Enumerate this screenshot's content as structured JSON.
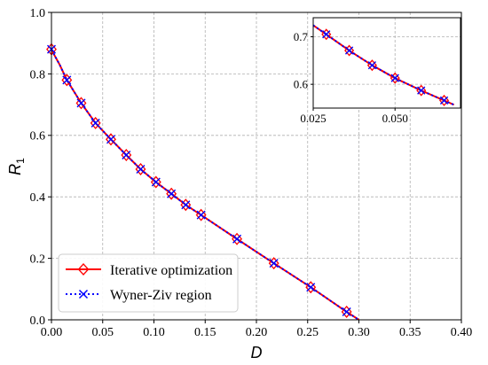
{
  "chart_data": [
    {
      "type": "line",
      "xlabel": "D",
      "ylabel_main": "R",
      "ylabel_sub": "1",
      "xlim": [
        0,
        0.4
      ],
      "ylim": [
        0,
        1.0
      ],
      "xticks": [
        "0.00",
        "0.05",
        "0.10",
        "0.15",
        "0.20",
        "0.25",
        "0.30",
        "0.35",
        "0.40"
      ],
      "yticks": [
        "0.0",
        "0.2",
        "0.4",
        "0.6",
        "0.8",
        "1.0"
      ],
      "grid": true,
      "legend_position": "lower-left",
      "series": [
        {
          "name": "Iterative optimization",
          "color": "#ff0000",
          "line_style": "solid",
          "marker": "diamond",
          "x": [
            0.0,
            0.003,
            0.008,
            0.015,
            0.029,
            0.043,
            0.058,
            0.073,
            0.087,
            0.102,
            0.117,
            0.131,
            0.146,
            0.181,
            0.217,
            0.253,
            0.288,
            0.3
          ],
          "y": [
            0.88,
            0.86,
            0.83,
            0.78,
            0.705,
            0.64,
            0.587,
            0.536,
            0.49,
            0.448,
            0.41,
            0.374,
            0.341,
            0.263,
            0.184,
            0.106,
            0.026,
            0.0
          ],
          "marker_x": [
            0.0,
            0.015,
            0.029,
            0.043,
            0.058,
            0.073,
            0.087,
            0.102,
            0.117,
            0.131,
            0.146,
            0.181,
            0.217,
            0.253,
            0.288
          ],
          "marker_y": [
            0.88,
            0.78,
            0.705,
            0.64,
            0.587,
            0.536,
            0.49,
            0.448,
            0.41,
            0.374,
            0.341,
            0.263,
            0.184,
            0.106,
            0.026
          ]
        },
        {
          "name": "Wyner-Ziv region",
          "color": "#0000ff",
          "line_style": "dotted",
          "marker": "x",
          "x": [
            0.0,
            0.003,
            0.008,
            0.015,
            0.029,
            0.043,
            0.058,
            0.073,
            0.087,
            0.102,
            0.117,
            0.131,
            0.146,
            0.181,
            0.217,
            0.253,
            0.288,
            0.3
          ],
          "y": [
            0.88,
            0.86,
            0.83,
            0.78,
            0.705,
            0.64,
            0.587,
            0.536,
            0.49,
            0.448,
            0.41,
            0.374,
            0.341,
            0.263,
            0.184,
            0.106,
            0.026,
            0.0
          ],
          "marker_x": [
            0.0,
            0.015,
            0.029,
            0.043,
            0.058,
            0.073,
            0.087,
            0.102,
            0.117,
            0.131,
            0.146,
            0.181,
            0.217,
            0.253,
            0.288
          ],
          "marker_y": [
            0.88,
            0.78,
            0.705,
            0.64,
            0.587,
            0.536,
            0.49,
            0.448,
            0.41,
            0.374,
            0.341,
            0.263,
            0.184,
            0.106,
            0.026
          ]
        }
      ]
    },
    {
      "type": "line",
      "role": "inset",
      "xlim": [
        0.025,
        0.07
      ],
      "ylim": [
        0.55,
        0.74
      ],
      "xticks": [
        "0.025",
        "0.050"
      ],
      "xtick_values": [
        0.025,
        0.05
      ],
      "yticks": [
        "0.6",
        "0.7"
      ],
      "ytick_values": [
        0.6,
        0.7
      ],
      "grid": true,
      "series": [
        {
          "name": "Iterative optimization",
          "color": "#ff0000",
          "line_style": "solid",
          "marker": "diamond",
          "x": [
            0.025,
            0.029,
            0.036,
            0.043,
            0.05,
            0.058,
            0.065,
            0.068
          ],
          "y": [
            0.724,
            0.705,
            0.671,
            0.64,
            0.613,
            0.587,
            0.566,
            0.557
          ],
          "marker_x": [
            0.029,
            0.036,
            0.043,
            0.05,
            0.058,
            0.065
          ],
          "marker_y": [
            0.705,
            0.671,
            0.64,
            0.613,
            0.587,
            0.566
          ]
        },
        {
          "name": "Wyner-Ziv region",
          "color": "#0000ff",
          "line_style": "dotted",
          "marker": "x",
          "x": [
            0.025,
            0.029,
            0.036,
            0.043,
            0.05,
            0.058,
            0.065,
            0.068
          ],
          "y": [
            0.724,
            0.705,
            0.671,
            0.64,
            0.613,
            0.587,
            0.566,
            0.557
          ],
          "marker_x": [
            0.029,
            0.036,
            0.043,
            0.05,
            0.058,
            0.065
          ],
          "marker_y": [
            0.705,
            0.671,
            0.64,
            0.613,
            0.587,
            0.566
          ]
        }
      ]
    }
  ]
}
